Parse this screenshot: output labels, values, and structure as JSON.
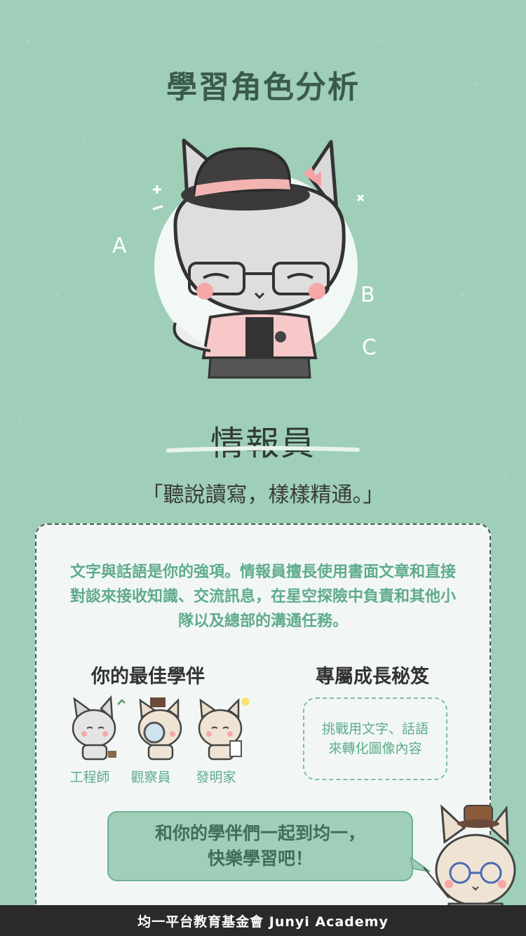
{
  "title": "學習角色分析",
  "role": {
    "name": "情報員",
    "quote": "「聽說讀寫，樣樣精通。」",
    "description": "文字與話語是你的強項。情報員擅長使用書面文章和直接對談來接收知識、交流訊息，在星空探險中負責和其他小隊以及總部的溝通任務。"
  },
  "hero_letters": [
    "A",
    "B",
    "C"
  ],
  "partners": {
    "title": "你的最佳學伴",
    "items": [
      {
        "label": "工程師"
      },
      {
        "label": "觀察員"
      },
      {
        "label": "發明家"
      }
    ]
  },
  "secrets": {
    "title": "專屬成長秘笈",
    "text_line1": "挑戰用文字、話語",
    "text_line2": "來轉化圖像內容"
  },
  "bubble": {
    "line1": "和你的學伴們一起到均一，",
    "line2": "快樂學習吧！"
  },
  "footer": "均一平台教育基金會 Junyi Academy",
  "colors": {
    "background": "#9fcfb8",
    "accent_text": "#5fab8c",
    "card": "#f2f7f5",
    "footer": "#2a2a2a"
  }
}
